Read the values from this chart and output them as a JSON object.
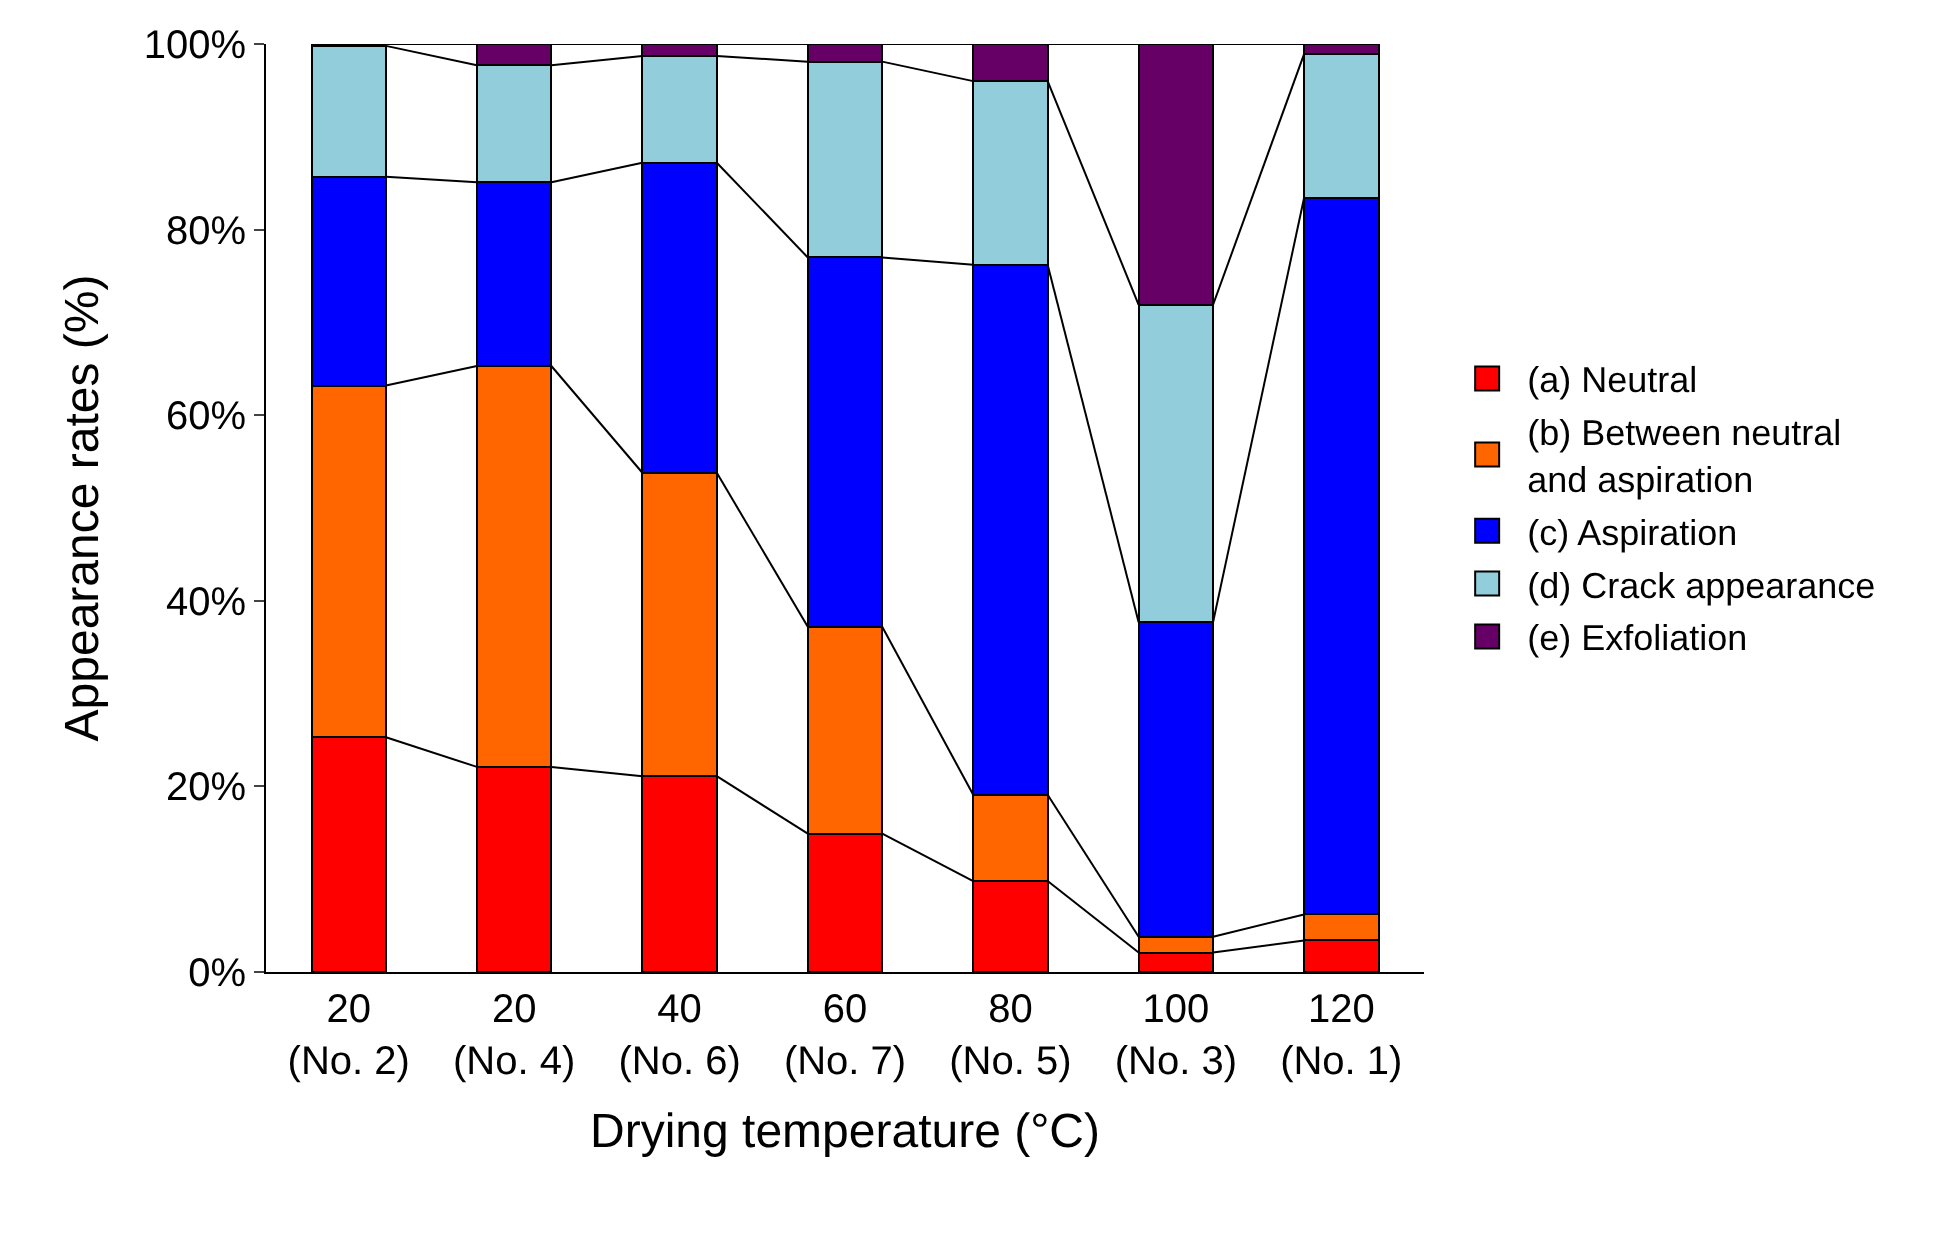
{
  "chart_data": {
    "type": "bar",
    "stacked": true,
    "xlabel": "Drying temperature (°C)",
    "ylabel": "Appearance rates (%)",
    "categories": [
      "20\n(No. 2)",
      "20\n(No. 4)",
      "40\n(No. 6)",
      "60\n(No. 7)",
      "80\n(No. 5)",
      "100\n(No. 3)",
      "120\n(No. 1)"
    ],
    "series": [
      {
        "name": "(a) Neutral",
        "color": "#ff0000",
        "values": [
          25.3,
          22.1,
          21.1,
          14.9,
          9.8,
          2.1,
          3.4
        ]
      },
      {
        "name": "(b) Between neutral and aspiration",
        "color": "#ff6600",
        "values": [
          37.9,
          43.2,
          32.7,
          22.3,
          9.3,
          1.7,
          2.8
        ]
      },
      {
        "name": "(c) Aspiration",
        "color": "#0000ff",
        "values": [
          22.5,
          19.8,
          33.4,
          39.8,
          57.1,
          33.9,
          77.2
        ]
      },
      {
        "name": "(d) Crack appearance",
        "color": "#92cddc",
        "values": [
          14.1,
          12.6,
          11.5,
          21.1,
          19.8,
          34.2,
          15.5
        ]
      },
      {
        "name": "(e) Exfoliation",
        "color": "#660066",
        "values": [
          0.2,
          2.3,
          1.3,
          1.9,
          4.0,
          28.1,
          1.1
        ]
      }
    ],
    "ylim": [
      0,
      100
    ],
    "yticks": [
      {
        "value": 0,
        "label": "0%"
      },
      {
        "value": 20,
        "label": "20%"
      },
      {
        "value": 40,
        "label": "40%"
      },
      {
        "value": 60,
        "label": "60%"
      },
      {
        "value": 80,
        "label": "80%"
      },
      {
        "value": 100,
        "label": "100%"
      }
    ],
    "grid": false,
    "legend": "right"
  }
}
